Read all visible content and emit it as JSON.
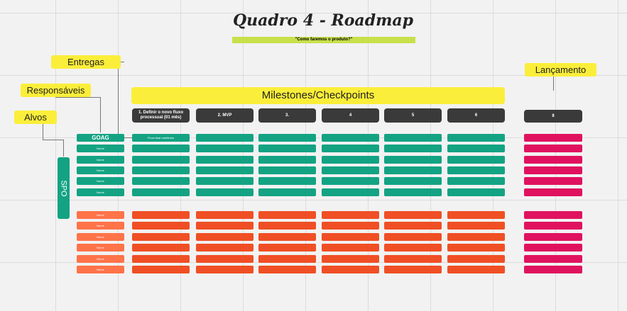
{
  "title": "Quadro 4 - Roadmap",
  "subtitle": "\"Como faremos o produto?\"",
  "labels": {
    "entregas": "Entregas",
    "responsaveis": "Responsáveis",
    "alvos": "Alvos",
    "lancamento": "Lançamento",
    "milestones": "Milestones/Checkpoints"
  },
  "milestone_headers": [
    "1. Definir o novo fluxo processual (01 mês)",
    "2. MVP",
    "3.",
    "4",
    "5",
    "6"
  ],
  "launch_header": "8",
  "target": "SPO",
  "green_responsibles": [
    "GOAG",
    "Nome",
    "Nome",
    "Nome",
    "Nome",
    "Nome"
  ],
  "orange_responsibles": [
    "Nome",
    "Nome",
    "Nome",
    "Nome",
    "Nome",
    "Nome"
  ],
  "first_delivery": "Fluxo final redefinido",
  "colors": {
    "green": "#13a383",
    "orange": "#f04f25",
    "pink": "#e0125f",
    "yellow": "#fbee3a",
    "dark": "#3a3a3a"
  }
}
